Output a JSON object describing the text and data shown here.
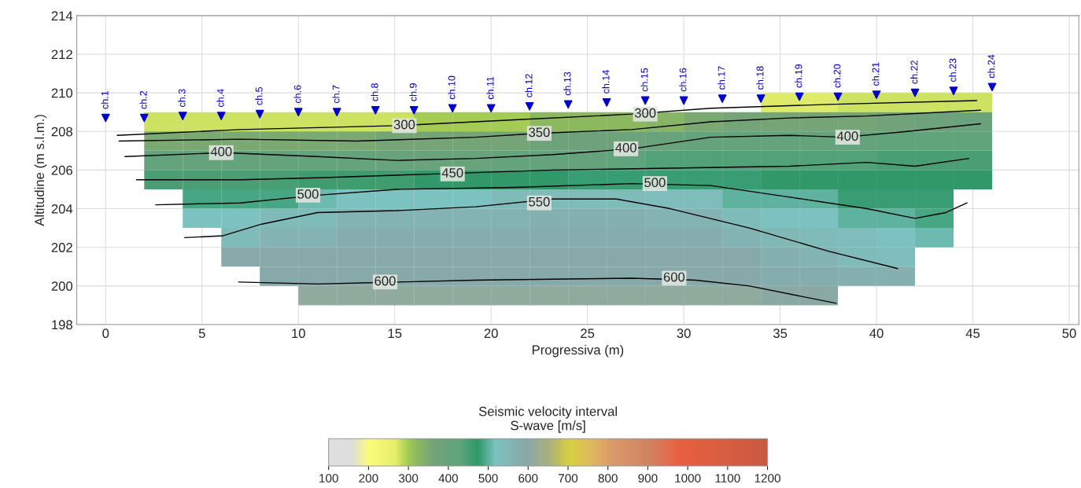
{
  "chart_data": {
    "type": "heatmap",
    "xlabel": "Progressiva (m)",
    "ylabel": "Altitudine (m s.l.m.)",
    "clabel": "Seismic velocity interval\nS-wave [m/s]",
    "xlim": [
      -1.5,
      50.5
    ],
    "ylim": [
      198,
      214
    ],
    "xticks": [
      0,
      5,
      10,
      15,
      20,
      25,
      30,
      35,
      40,
      45,
      50
    ],
    "yticks": [
      198,
      200,
      202,
      204,
      206,
      208,
      210,
      212,
      214
    ],
    "clim": [
      100,
      1200
    ],
    "cticks": [
      100,
      200,
      300,
      400,
      500,
      600,
      700,
      800,
      900,
      1000,
      1100,
      1200
    ],
    "grid": true,
    "x": [
      1,
      3,
      5,
      7,
      9,
      11,
      13,
      15,
      17,
      19,
      21,
      23,
      25,
      27,
      29,
      31,
      33,
      35,
      37,
      39,
      41,
      43,
      45
    ],
    "y": [
      209.5,
      208.5,
      207.5,
      206.5,
      205.5,
      204.5,
      203.5,
      202.5,
      201.5,
      200.5,
      199.5
    ],
    "cells": [
      [
        null,
        null,
        null,
        null,
        null,
        null,
        null,
        null,
        null,
        null,
        null,
        null,
        null,
        null,
        null,
        null,
        null,
        270,
        270,
        280,
        280,
        280,
        280
      ],
      [
        null,
        280,
        280,
        280,
        280,
        280,
        280,
        280,
        300,
        300,
        300,
        320,
        320,
        320,
        330,
        350,
        360,
        360,
        360,
        360,
        370,
        380,
        390
      ],
      [
        null,
        350,
        350,
        350,
        350,
        350,
        350,
        360,
        360,
        360,
        360,
        380,
        380,
        380,
        390,
        410,
        410,
        410,
        410,
        410,
        420,
        420,
        420
      ],
      [
        null,
        410,
        410,
        410,
        410,
        410,
        410,
        400,
        400,
        400,
        410,
        410,
        410,
        430,
        440,
        440,
        440,
        440,
        440,
        440,
        450,
        450,
        450
      ],
      [
        null,
        450,
        450,
        450,
        450,
        460,
        460,
        460,
        470,
        470,
        470,
        470,
        480,
        480,
        480,
        480,
        480,
        470,
        470,
        470,
        470,
        470,
        470
      ],
      [
        null,
        null,
        490,
        490,
        490,
        510,
        520,
        520,
        520,
        520,
        540,
        540,
        540,
        540,
        530,
        530,
        500,
        500,
        500,
        480,
        480,
        480,
        null
      ],
      [
        null,
        null,
        520,
        520,
        540,
        540,
        560,
        560,
        560,
        560,
        560,
        570,
        570,
        570,
        560,
        560,
        540,
        520,
        520,
        500,
        500,
        490,
        null
      ],
      [
        null,
        null,
        null,
        540,
        560,
        560,
        580,
        580,
        580,
        580,
        580,
        580,
        580,
        580,
        580,
        580,
        560,
        550,
        540,
        530,
        520,
        510,
        null
      ],
      [
        null,
        null,
        null,
        590,
        590,
        590,
        590,
        590,
        590,
        590,
        590,
        590,
        590,
        590,
        590,
        590,
        590,
        570,
        560,
        540,
        530,
        null,
        null
      ],
      [
        null,
        null,
        null,
        null,
        590,
        590,
        590,
        590,
        590,
        590,
        590,
        590,
        590,
        590,
        590,
        590,
        590,
        580,
        580,
        570,
        570,
        null,
        null
      ],
      [
        null,
        null,
        null,
        null,
        null,
        610,
        610,
        610,
        610,
        610,
        610,
        610,
        610,
        610,
        610,
        610,
        610,
        600,
        600,
        null,
        null,
        null,
        null
      ]
    ],
    "series": [
      {
        "type": "line",
        "color": "#000000",
        "x": [
          0.6,
          7,
          15.1,
          21.2,
          27.3,
          31.4,
          37.5,
          45.2
        ],
        "values": [
          207.8,
          208.1,
          208.3,
          208.6,
          208.9,
          209.2,
          209.4,
          209.6
        ]
      },
      {
        "type": "line",
        "color": "#000000",
        "x": [
          0.7,
          7,
          13,
          19.2,
          22.4,
          27.3,
          31.4,
          35.5,
          39.5,
          45.4
        ],
        "values": [
          207.5,
          207.6,
          207.5,
          207.7,
          207.9,
          208.1,
          208.5,
          208.7,
          208.8,
          209.1
        ]
      },
      {
        "type": "line",
        "color": "#000000",
        "x": [
          1,
          6.1,
          11,
          15.1,
          19.2,
          23.2,
          27.3,
          31.4,
          35.5,
          38.3,
          41.6,
          45.4
        ],
        "values": [
          206.7,
          206.9,
          206.7,
          206.5,
          206.6,
          206.8,
          207.1,
          207.7,
          207.8,
          207.7,
          208,
          208.4
        ]
      },
      {
        "type": "line",
        "color": "#000000",
        "x": [
          1.6,
          7,
          11,
          17.1,
          23.2,
          29.3,
          35.5,
          39.5,
          42,
          44.8
        ],
        "values": [
          205.5,
          205.5,
          205.6,
          205.8,
          206,
          206.1,
          206.2,
          206.4,
          206.2,
          206.6
        ]
      },
      {
        "type": "line",
        "color": "#000000",
        "x": [
          2.6,
          7,
          11,
          15.1,
          21.2,
          27.3,
          31.4,
          35.5,
          39.5,
          42,
          43.6,
          44.7
        ],
        "values": [
          204.2,
          204.3,
          204.7,
          205,
          205.1,
          205.3,
          205.2,
          204.6,
          204,
          203.5,
          203.8,
          204.3
        ]
      },
      {
        "type": "line",
        "color": "#000000",
        "x": [
          4.1,
          6.1,
          8.1,
          11,
          15.1,
          19.2,
          23.2,
          26.5,
          29.3,
          33.4,
          37.5,
          41.1
        ],
        "values": [
          202.5,
          202.6,
          203.2,
          203.8,
          203.9,
          204.1,
          204.5,
          204.5,
          204,
          203,
          201.8,
          200.9
        ]
      },
      {
        "type": "line",
        "color": "#000000",
        "x": [
          6.9,
          11,
          19.2,
          27.3,
          30.6,
          33.4,
          37.9
        ],
        "values": [
          200.2,
          200.1,
          200.3,
          200.4,
          200.3,
          200,
          199.1
        ]
      },
      {
        "type": "scatter",
        "color": "#0000cc",
        "marker": "triangle",
        "x": [
          0,
          2,
          4,
          6,
          8,
          10,
          12,
          14,
          16,
          18,
          20,
          22,
          24,
          26,
          28,
          30,
          32,
          34,
          36,
          38,
          40,
          42,
          44,
          46
        ],
        "values": [
          208.7,
          208.7,
          208.8,
          208.8,
          208.9,
          209.0,
          209.0,
          209.1,
          209.1,
          209.2,
          209.2,
          209.3,
          209.4,
          209.5,
          209.6,
          209.6,
          209.7,
          209.7,
          209.8,
          209.8,
          209.9,
          210.0,
          210.1,
          210.3
        ],
        "value_labels": [
          "ch.1",
          "ch.2",
          "ch.3",
          "ch.4",
          "ch.5",
          "ch.6",
          "ch.7",
          "ch.8",
          "ch.9",
          "ch.10",
          "ch.11",
          "ch.12",
          "ch.13",
          "ch.14",
          "ch.15",
          "ch.16",
          "ch.17",
          "ch.18",
          "ch.19",
          "ch.20",
          "ch.21",
          "ch.22",
          "ch.23",
          "ch.24"
        ]
      }
    ],
    "annotations": [
      {
        "text": "300",
        "x": 15.5,
        "y": 208.3
      },
      {
        "text": "300",
        "x": 28,
        "y": 208.9
      },
      {
        "text": "350",
        "x": 22.5,
        "y": 207.9
      },
      {
        "text": "400",
        "x": 6,
        "y": 206.9
      },
      {
        "text": "400",
        "x": 27,
        "y": 207.1
      },
      {
        "text": "400",
        "x": 38.5,
        "y": 207.7
      },
      {
        "text": "450",
        "x": 18,
        "y": 205.8
      },
      {
        "text": "500",
        "x": 10.5,
        "y": 204.7
      },
      {
        "text": "500",
        "x": 28.5,
        "y": 205.3
      },
      {
        "text": "550",
        "x": 22.5,
        "y": 204.3
      },
      {
        "text": "600",
        "x": 14.5,
        "y": 200.2
      },
      {
        "text": "600",
        "x": 29.5,
        "y": 200.4
      }
    ]
  }
}
